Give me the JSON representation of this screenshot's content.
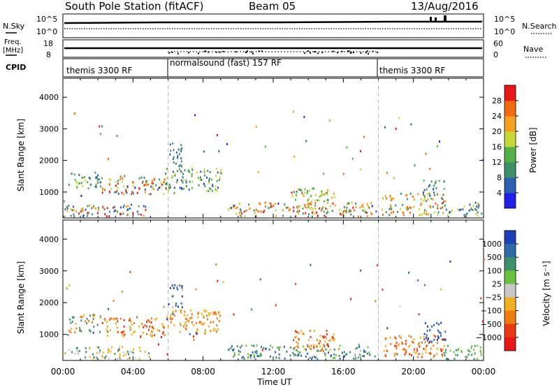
{
  "header": {
    "station": "South Pole Station (fitACF)",
    "beam": "Beam 05",
    "date": "13/Aug/2016"
  },
  "panels": {
    "nsky": {
      "label": "N.Sky",
      "left_ticks": [
        "10^5",
        "10^0"
      ],
      "right_label": "N.Search",
      "right_ticks": [
        "10^5",
        "10^0"
      ]
    },
    "freq": {
      "label_line1": "Freq.",
      "label_line2": "[MHz]",
      "left_ticks": [
        "18",
        "8"
      ],
      "right_label": "Nave",
      "right_ticks": [
        "60",
        "0"
      ]
    },
    "cpid": {
      "label": "CPID",
      "segments": [
        {
          "text": "themis 3300 RF",
          "start_hour": 0
        },
        {
          "text": "normalsound (fast) 157 RF",
          "start_hour": 6
        },
        {
          "text": "themis 3300 RF",
          "start_hour": 18
        }
      ]
    }
  },
  "chart_data": [
    {
      "type": "heatmap",
      "parameter": "power",
      "ylabel": "Slant Range [km]",
      "ylim": [
        180,
        4600
      ],
      "xlim_hours": [
        0,
        24
      ],
      "yticks": [
        1000,
        2000,
        3000,
        4000
      ],
      "colorbar": {
        "label": "Power [dB]",
        "levels": [
          "4",
          "8",
          "12",
          "16",
          "20",
          "24",
          "28"
        ],
        "colors": [
          "#1f1fe8",
          "#2c5fb0",
          "#3f8f6a",
          "#55b04a",
          "#c8d838",
          "#f5a020",
          "#f06a10",
          "#e81818"
        ]
      },
      "echo_regions": [
        {
          "t0": 0.3,
          "t1": 2.2,
          "r0": 1100,
          "r1": 1650,
          "colors": [
            "#2c5fb0",
            "#3f8f6a",
            "#55b04a",
            "#c8d838"
          ]
        },
        {
          "t0": 2.2,
          "t1": 5.8,
          "r0": 950,
          "r1": 1550,
          "colors": [
            "#2c5fb0",
            "#3f8f6a",
            "#c8d838",
            "#f5a020",
            "#f06a10",
            "#e81818"
          ]
        },
        {
          "t0": 5.8,
          "t1": 9.0,
          "r0": 1050,
          "r1": 1800,
          "colors": [
            "#2c5fb0",
            "#3f8f6a",
            "#55b04a",
            "#c8d838"
          ]
        },
        {
          "t0": 6.0,
          "t1": 6.8,
          "r0": 1800,
          "r1": 2600,
          "colors": [
            "#2c5fb0",
            "#3f8f6a"
          ]
        },
        {
          "t0": 0.0,
          "t1": 5.0,
          "r0": 250,
          "r1": 650,
          "colors": [
            "#3f8f6a",
            "#f5a020",
            "#e81818",
            "#2c5fb0"
          ]
        },
        {
          "t0": 9.4,
          "t1": 17.8,
          "r0": 250,
          "r1": 700,
          "colors": [
            "#3f8f6a",
            "#c8d838",
            "#f5a020",
            "#f06a10",
            "#e81818"
          ]
        },
        {
          "t0": 13.0,
          "t1": 15.5,
          "r0": 500,
          "r1": 1150,
          "colors": [
            "#3f8f6a",
            "#55b04a",
            "#c8d838",
            "#f5a020"
          ]
        },
        {
          "t0": 18.2,
          "t1": 21.8,
          "r0": 300,
          "r1": 1000,
          "colors": [
            "#f06a10",
            "#f5a020",
            "#c8d838",
            "#3f8f6a"
          ]
        },
        {
          "t0": 20.5,
          "t1": 21.8,
          "r0": 800,
          "r1": 1400,
          "colors": [
            "#2c5fb0",
            "#3f8f6a",
            "#55b04a"
          ]
        },
        {
          "t0": 21.8,
          "t1": 23.9,
          "r0": 250,
          "r1": 700,
          "colors": [
            "#2c5fb0",
            "#3f8f6a",
            "#c8d838"
          ]
        }
      ]
    },
    {
      "type": "heatmap",
      "parameter": "velocity",
      "ylabel": "Slant Range [km]",
      "ylim": [
        180,
        4600
      ],
      "xlim_hours": [
        0,
        24
      ],
      "yticks": [
        1000,
        2000,
        3000,
        4000
      ],
      "xlabel": "Time UT",
      "xticks": [
        "00:00",
        "04:00",
        "08:00",
        "12:00",
        "16:00",
        "20:00",
        "00:00"
      ],
      "colorbar": {
        "label": "Velocity [m s⁻¹]",
        "levels": [
          "1000",
          "500",
          "100",
          "25",
          "−25",
          "−100",
          "−500",
          "−1000"
        ],
        "colors": [
          "#1f3fb8",
          "#2e6aa8",
          "#3f8f6a",
          "#6cc040",
          "#c8c8c8",
          "#f0b020",
          "#f07a10",
          "#e83a10",
          "#e81818"
        ]
      },
      "echo_regions": [
        {
          "t0": 0.3,
          "t1": 2.2,
          "r0": 1100,
          "r1": 1650,
          "colors": [
            "#f07a10",
            "#f0b020",
            "#3f8f6a"
          ]
        },
        {
          "t0": 2.2,
          "t1": 5.8,
          "r0": 950,
          "r1": 1550,
          "colors": [
            "#f07a10",
            "#f0b020",
            "#e83a10"
          ]
        },
        {
          "t0": 5.8,
          "t1": 9.0,
          "r0": 1050,
          "r1": 1800,
          "colors": [
            "#f07a10",
            "#f0b020"
          ]
        },
        {
          "t0": 6.0,
          "t1": 6.8,
          "r0": 1800,
          "r1": 2600,
          "colors": [
            "#2e6aa8",
            "#1f3fb8",
            "#c8c8c8"
          ]
        },
        {
          "t0": 0.0,
          "t1": 5.0,
          "r0": 250,
          "r1": 650,
          "colors": [
            "#c8c8c8",
            "#f0b020",
            "#3f8f6a"
          ]
        },
        {
          "t0": 9.4,
          "t1": 17.8,
          "r0": 250,
          "r1": 700,
          "colors": [
            "#3f8f6a",
            "#6cc040",
            "#2e6aa8"
          ]
        },
        {
          "t0": 13.0,
          "t1": 15.5,
          "r0": 500,
          "r1": 1150,
          "colors": [
            "#f07a10",
            "#e83a10",
            "#f0b020"
          ]
        },
        {
          "t0": 18.2,
          "t1": 21.8,
          "r0": 300,
          "r1": 1000,
          "colors": [
            "#f07a10",
            "#f0b020",
            "#e83a10"
          ]
        },
        {
          "t0": 20.5,
          "t1": 21.8,
          "r0": 800,
          "r1": 1400,
          "colors": [
            "#1f3fb8",
            "#2e6aa8"
          ]
        },
        {
          "t0": 21.8,
          "t1": 23.9,
          "r0": 250,
          "r1": 700,
          "colors": [
            "#3f8f6a",
            "#6cc040"
          ]
        }
      ]
    }
  ]
}
